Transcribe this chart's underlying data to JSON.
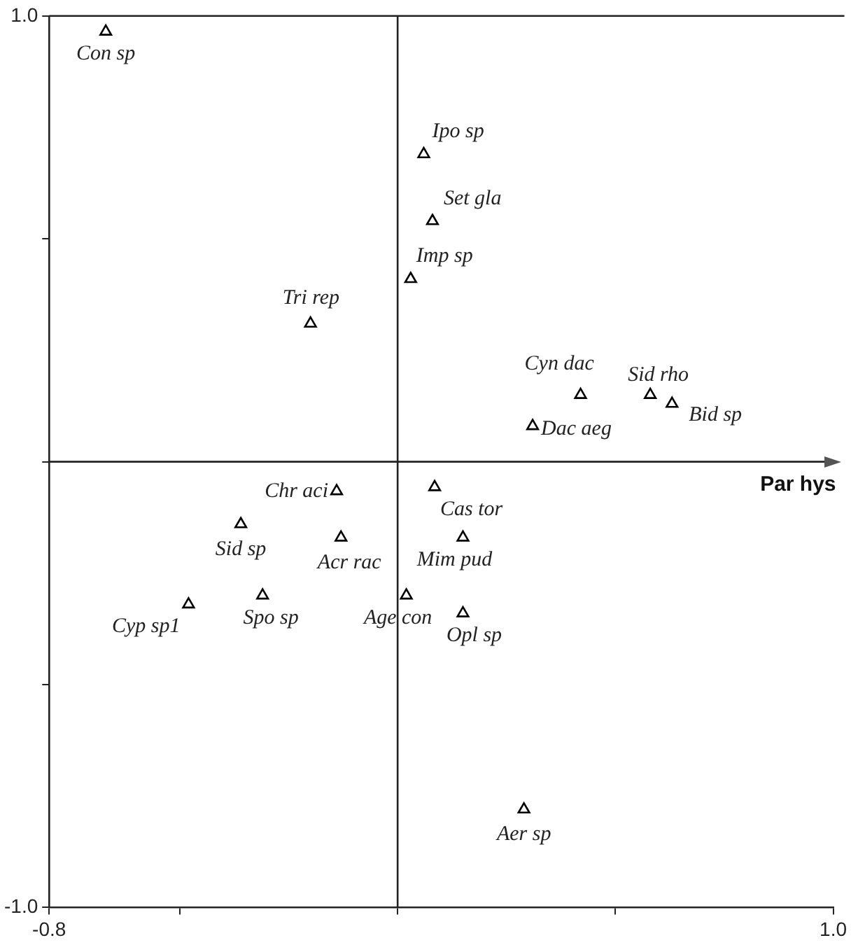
{
  "chart_data": {
    "type": "scatter",
    "x": [
      -0.67,
      -0.2,
      0.06,
      0.08,
      0.03,
      0.42,
      0.58,
      0.63,
      0.31,
      -0.14,
      -0.36,
      -0.13,
      -0.48,
      -0.31,
      0.02,
      0.085,
      0.15,
      0.15,
      0.29
    ],
    "values": [
      0.965,
      0.31,
      0.69,
      0.54,
      0.41,
      0.15,
      0.15,
      0.13,
      0.08,
      -0.066,
      -0.14,
      -0.17,
      -0.32,
      -0.3,
      -0.3,
      -0.057,
      -0.17,
      -0.34,
      -0.78
    ],
    "color": "#000000",
    "marker": "triangle",
    "xlim": [
      -0.8,
      1.0
    ],
    "xticks": [
      {
        "value": -0.8,
        "label": "-0.8"
      },
      {
        "value": -0.5,
        "label": null
      },
      {
        "value": 0,
        "label": null
      },
      {
        "value": 0.5,
        "label": null
      },
      {
        "value": 1.0,
        "label": "1.0"
      }
    ],
    "ylim": [
      -1.0,
      1.0
    ],
    "yticks": [
      {
        "value": -1.0,
        "label": "-1.0"
      },
      {
        "value": -0.5,
        "label": null
      },
      {
        "value": 0,
        "label": null
      },
      {
        "value": 0.5,
        "label": null
      },
      {
        "value": 1.0,
        "label": "1.0"
      }
    ],
    "grid": false,
    "legend": false,
    "ref_lines": [
      {
        "axis": "x",
        "value": 0
      },
      {
        "axis": "y",
        "value": 0,
        "label": "Par hys"
      }
    ],
    "annotations": [
      {
        "text": "Con sp",
        "x": -0.67,
        "y": 0.965
      },
      {
        "text": "Tri rep",
        "x": -0.2,
        "y": 0.31
      },
      {
        "text": "Ipo sp",
        "x": 0.06,
        "y": 0.69
      },
      {
        "text": "Set gla",
        "x": 0.08,
        "y": 0.54
      },
      {
        "text": "Imp sp",
        "x": 0.03,
        "y": 0.41
      },
      {
        "text": "Cyn dac",
        "x": 0.42,
        "y": 0.15
      },
      {
        "text": "Sid rho",
        "x": 0.58,
        "y": 0.15
      },
      {
        "text": "Bid sp",
        "x": 0.63,
        "y": 0.13
      },
      {
        "text": "Dac aeg",
        "x": 0.31,
        "y": 0.08
      },
      {
        "text": "Chr aci",
        "x": -0.14,
        "y": -0.066
      },
      {
        "text": "Sid sp",
        "x": -0.36,
        "y": -0.14
      },
      {
        "text": "Acr rac",
        "x": -0.13,
        "y": -0.17
      },
      {
        "text": "Cyp sp1",
        "x": -0.48,
        "y": -0.32
      },
      {
        "text": "Spo sp",
        "x": -0.31,
        "y": -0.3
      },
      {
        "text": "Age con",
        "x": 0.02,
        "y": -0.3
      },
      {
        "text": "Cas tor",
        "x": 0.085,
        "y": -0.057
      },
      {
        "text": "Mim pud",
        "x": 0.15,
        "y": -0.17
      },
      {
        "text": "Opl sp",
        "x": 0.15,
        "y": -0.34
      },
      {
        "text": "Aer sp",
        "x": 0.29,
        "y": -0.78
      }
    ]
  }
}
